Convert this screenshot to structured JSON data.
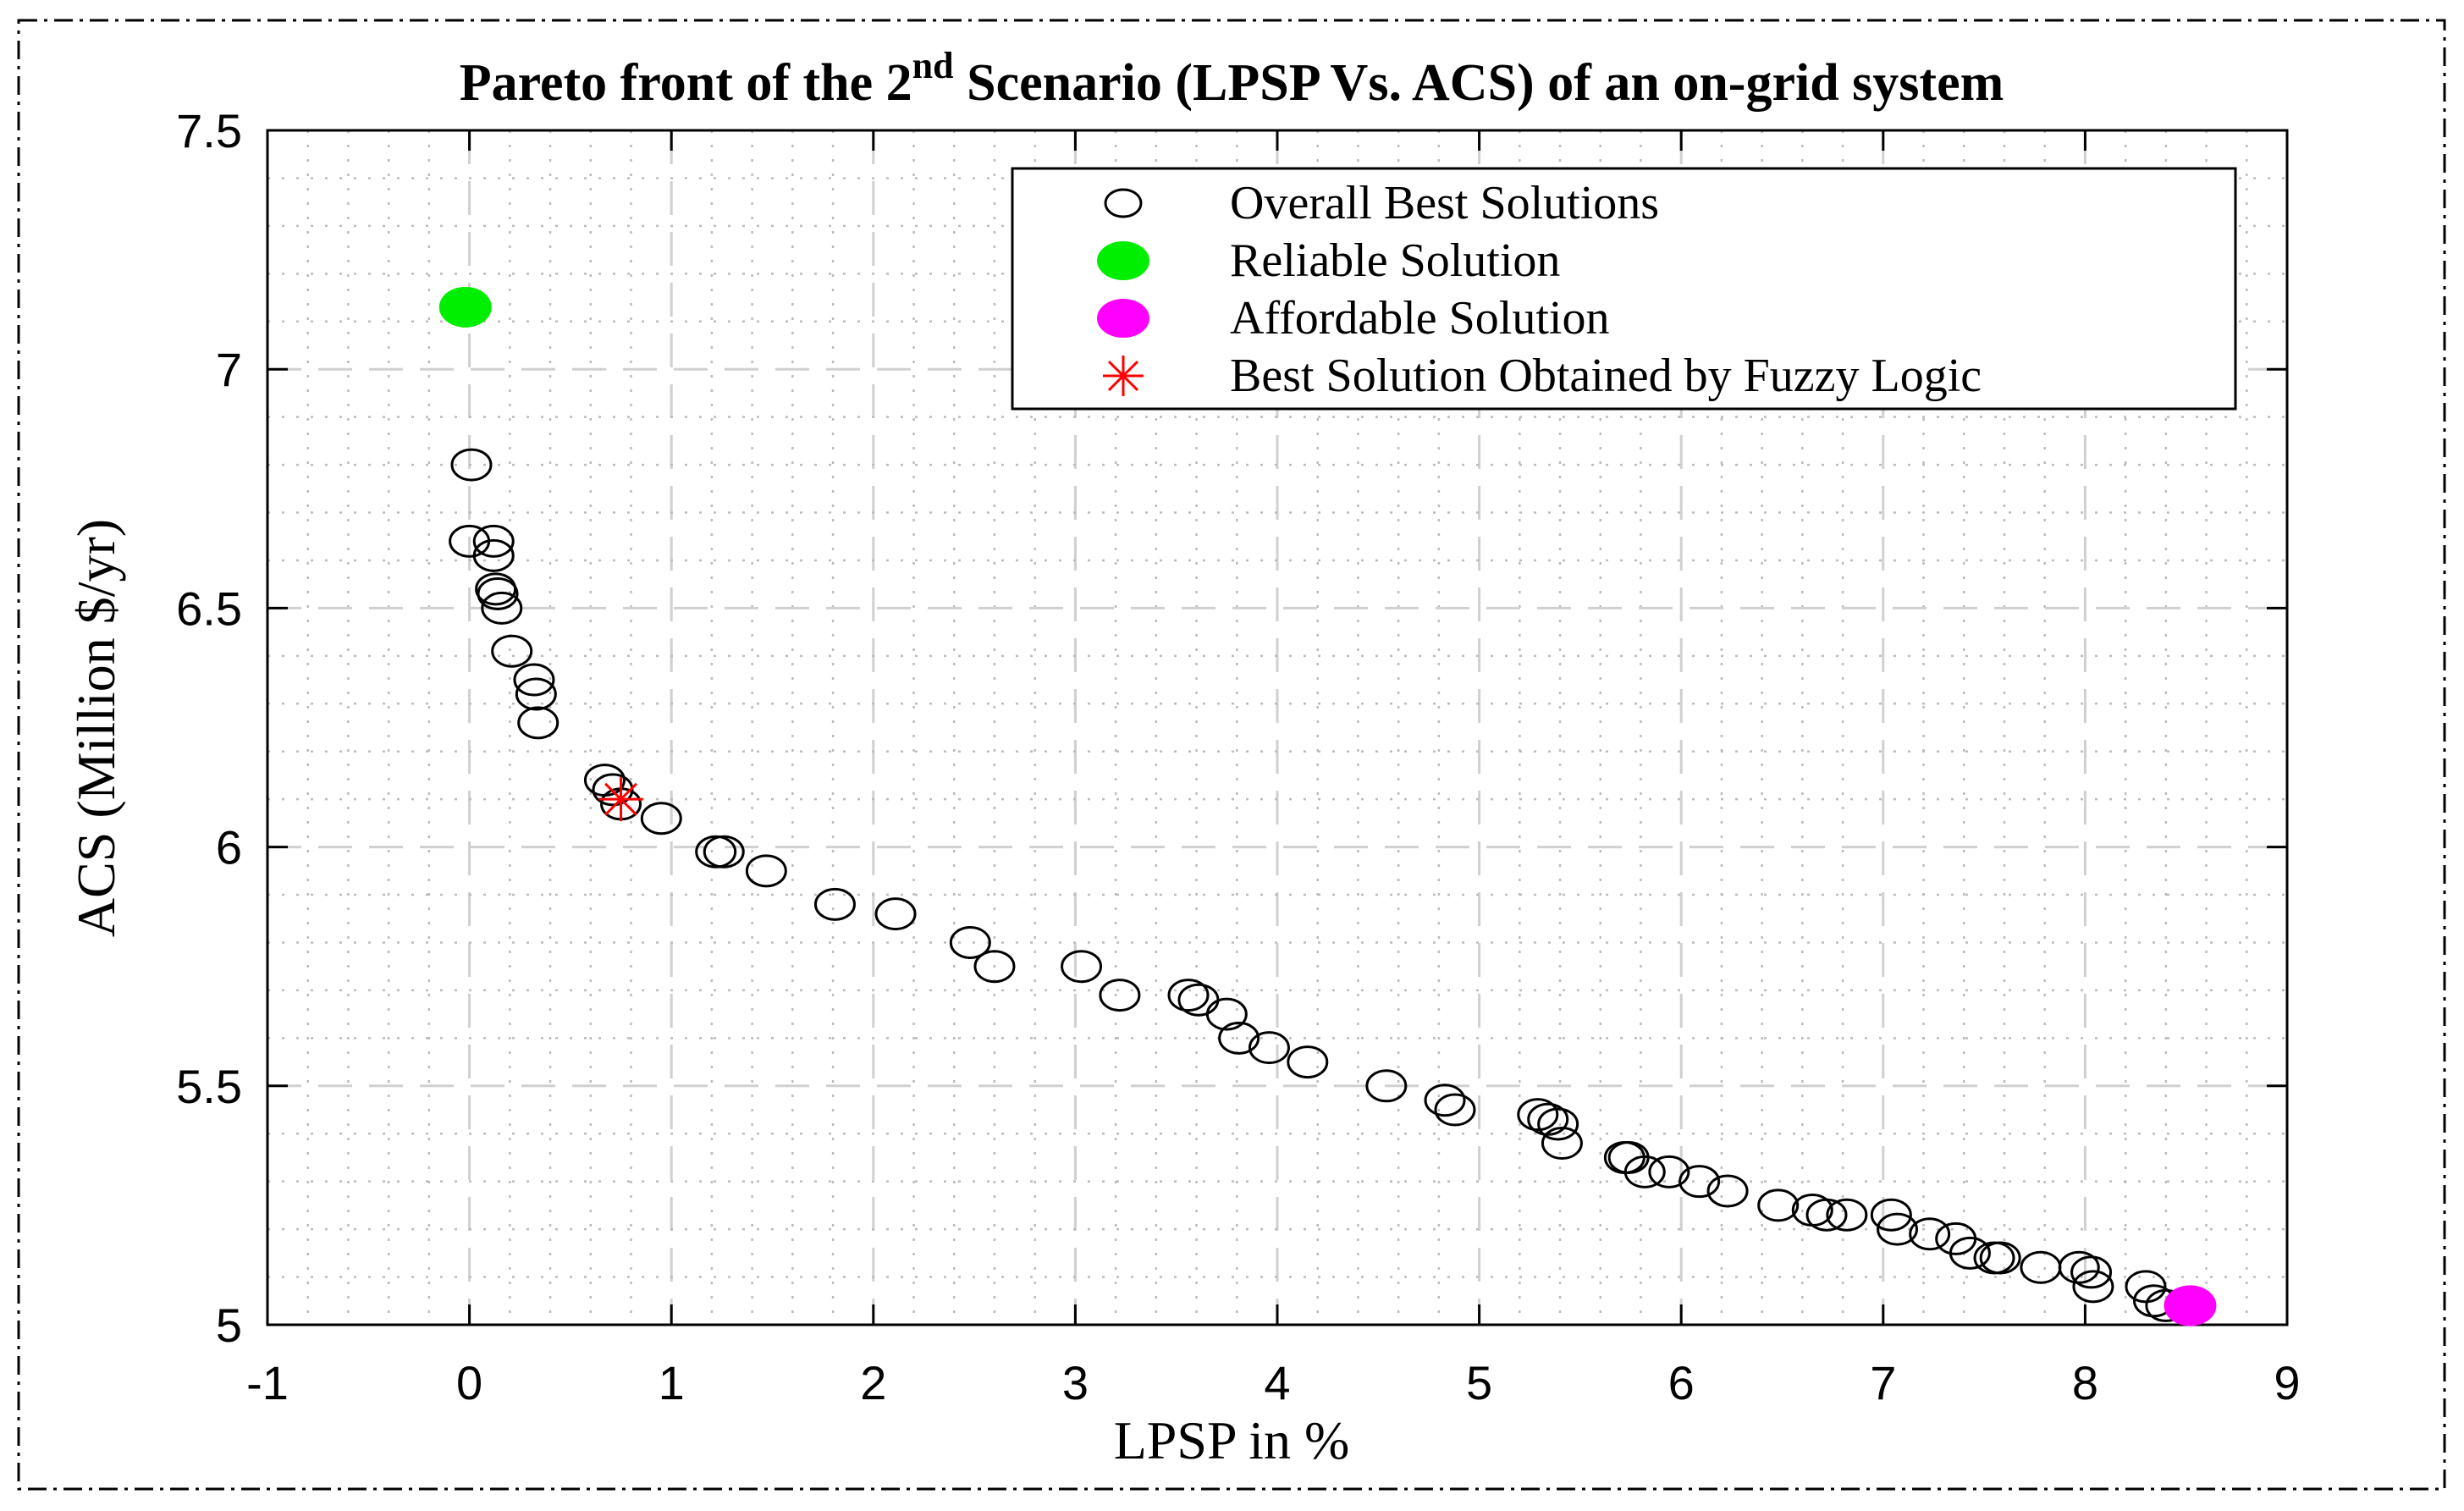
{
  "chart_data": {
    "type": "scatter",
    "title": "Pareto front of the 2",
    "title_sup": "nd",
    "title_rest": " Scenario (LPSP Vs. ACS) of an on-grid system",
    "xlabel": "LPSP in %",
    "ylabel": "ACS (Million $/yr)",
    "xlim": [
      -1,
      9
    ],
    "ylim": [
      5,
      7.5
    ],
    "xticks": [
      -1,
      0,
      1,
      2,
      3,
      4,
      5,
      6,
      7,
      8,
      9
    ],
    "yticks": [
      5,
      5.5,
      6,
      6.5,
      7,
      7.5
    ],
    "xtick_labels": [
      "-1",
      "0",
      "1",
      "2",
      "3",
      "4",
      "5",
      "6",
      "7",
      "8",
      "9"
    ],
    "ytick_labels": [
      "5",
      "5.5",
      "6",
      "6.5",
      "7",
      "7.5"
    ],
    "grid": true,
    "legend_position": "top-right",
    "legend": [
      {
        "label": "Overall Best Solutions",
        "marker": "open-circle",
        "color": "#000000"
      },
      {
        "label": "Reliable Solution",
        "marker": "filled-circle",
        "color": "#00ee00"
      },
      {
        "label": "Affordable Solution",
        "marker": "filled-circle",
        "color": "#ff00ff"
      },
      {
        "label": "Best Solution Obtained by Fuzzy Logic",
        "marker": "asterisk",
        "color": "#ff0000"
      }
    ],
    "series": [
      {
        "name": "Overall Best Solutions",
        "x": [
          0.01,
          0.0,
          0.12,
          0.12,
          0.13,
          0.14,
          0.16,
          0.21,
          0.32,
          0.33,
          0.34,
          0.67,
          0.71,
          0.75,
          0.95,
          1.22,
          1.26,
          1.47,
          1.81,
          2.11,
          2.48,
          2.6,
          3.03,
          3.22,
          3.56,
          3.61,
          3.75,
          3.81,
          3.96,
          4.15,
          4.54,
          4.83,
          4.88,
          5.29,
          5.34,
          5.39,
          5.41,
          5.72,
          5.74,
          5.82,
          5.94,
          6.09,
          6.23,
          6.48,
          6.65,
          6.72,
          6.82,
          7.04,
          7.07,
          7.23,
          7.36,
          7.43,
          7.55,
          7.58,
          7.78,
          7.97,
          8.03,
          8.04,
          8.3,
          8.34,
          8.4
        ],
        "y": [
          6.8,
          6.64,
          6.64,
          6.61,
          6.54,
          6.53,
          6.5,
          6.41,
          6.35,
          6.32,
          6.26,
          6.14,
          6.12,
          6.09,
          6.06,
          5.99,
          5.99,
          5.95,
          5.88,
          5.86,
          5.8,
          5.75,
          5.75,
          5.69,
          5.69,
          5.68,
          5.65,
          5.6,
          5.58,
          5.55,
          5.5,
          5.47,
          5.45,
          5.44,
          5.43,
          5.42,
          5.38,
          5.35,
          5.35,
          5.32,
          5.32,
          5.3,
          5.28,
          5.25,
          5.24,
          5.23,
          5.23,
          5.23,
          5.2,
          5.19,
          5.18,
          5.15,
          5.14,
          5.14,
          5.12,
          5.12,
          5.11,
          5.08,
          5.08,
          5.05,
          5.04
        ]
      },
      {
        "name": "Reliable Solution",
        "x": [
          -0.02
        ],
        "y": [
          7.13
        ]
      },
      {
        "name": "Affordable Solution",
        "x": [
          8.52
        ],
        "y": [
          5.04
        ]
      },
      {
        "name": "Best Solution Obtained by Fuzzy Logic",
        "x": [
          0.75
        ],
        "y": [
          6.1
        ]
      }
    ]
  }
}
